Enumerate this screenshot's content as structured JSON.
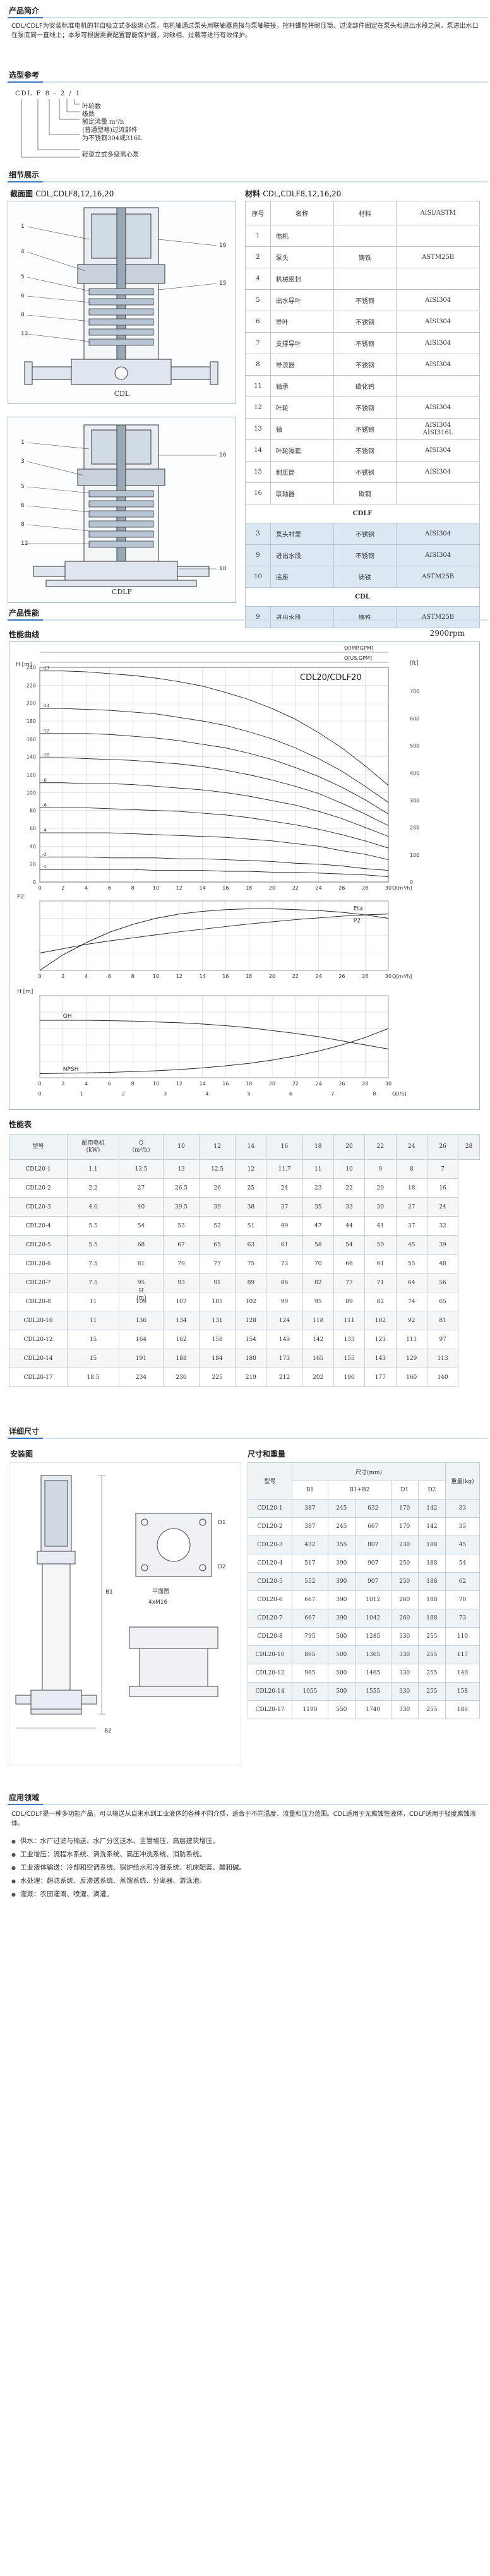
{
  "sections": {
    "intro": "产品简介",
    "model": "选型参考",
    "detail": "细节展示",
    "perf": "产品性能",
    "curve": "性能曲线",
    "perf_table": "性能表",
    "dims": "详细尺寸",
    "app": "应用领域"
  },
  "intro_text": "CDL/CDLF为安装标准电机的非自吸立式多级离心泵，电机轴通过泵头用联轴器直接与泵轴联接，控杆螺栓将耐压筒、过流部件固定在泵头和进出水段之间，泵进出水口在泵底同一直线上；本泵可根据需要配置智能保护器，对缺相、过载等进行有效保护。",
  "model_ref": {
    "code": "CDL  F  8 - 2 / 1",
    "lines": [
      "叶轮数",
      "级数",
      "额定流量 m³/h",
      "(普通型略)过流部件",
      "为不锈钢304或316L",
      "轻型立式多级离心泵"
    ]
  },
  "section_view": {
    "title": "截面图",
    "subtitle": "CDL,CDLF8,12,16,20",
    "labels": [
      "CDL",
      "CDLF"
    ]
  },
  "materials": {
    "title": "材料",
    "subtitle": "CDL,CDLF8,12,16,20",
    "headers": [
      "序号",
      "名称",
      "材料",
      "AISI/ASTM"
    ],
    "rows": [
      [
        "1",
        "电机",
        "",
        ""
      ],
      [
        "2",
        "泵头",
        "铸铁",
        "ASTM25B"
      ],
      [
        "4",
        "机械密封",
        "",
        ""
      ],
      [
        "5",
        "出水导叶",
        "不锈钢",
        "AISI304"
      ],
      [
        "6",
        "导叶",
        "不锈钢",
        "AISI304"
      ],
      [
        "7",
        "支撑导叶",
        "不锈钢",
        "AISI304"
      ],
      [
        "8",
        "导流器",
        "不锈钢",
        "AISI304"
      ],
      [
        "11",
        "轴承",
        "碳化钨",
        ""
      ],
      [
        "12",
        "叶轮",
        "不锈钢",
        "AISI304"
      ],
      [
        "13",
        "轴",
        "不锈钢",
        "AISI304\nAISI316L"
      ],
      [
        "14",
        "叶轮隔套",
        "不锈钢",
        "AISI304"
      ],
      [
        "15",
        "耐压筒",
        "不锈钢",
        "AISI304"
      ],
      [
        "16",
        "联轴器",
        "碳钢",
        ""
      ]
    ],
    "cdlf_label": "CDLF",
    "cdlf_rows": [
      [
        "3",
        "泵头衬里",
        "不锈钢",
        "AISI304"
      ],
      [
        "9",
        "进出水段",
        "不锈钢",
        "AISI304"
      ],
      [
        "10",
        "底座",
        "铸铁",
        "ASTM25B"
      ]
    ],
    "cdl_label": "CDL",
    "cdl_rows": [
      [
        "9",
        "进出水段",
        "铸铁",
        "ASTM25B"
      ]
    ]
  },
  "curve": {
    "rpm": "2900rpm",
    "model": "CDL20/CDLF20",
    "qaxis_imp": "Q[IMP.GPM]",
    "qaxis_us": "Q[US.GPM]",
    "h_unit_m": "H\n[m]",
    "h_unit_ft": "[ft]",
    "p_unit": "P2",
    "eta_label": "Eta",
    "p2_label": "P2",
    "npsh_label": "NPSH",
    "qh_label": "QH",
    "q_m3h": "Q[m³/h]",
    "q_ls": "Q[l/S]"
  },
  "chart_data": {
    "type": "line",
    "title": "CDL20/CDLF20",
    "xlabel": "Q[m³/h]",
    "ylabel": "H [m]",
    "xlim": [
      0,
      30
    ],
    "ylim": [
      0,
      240
    ],
    "x": [
      0,
      2,
      4,
      6,
      8,
      10,
      12,
      14,
      16,
      18,
      20,
      22,
      24,
      26,
      28,
      30
    ],
    "series": [
      {
        "name": "-17",
        "values": [
          236,
          236,
          235,
          233,
          231,
          228,
          224,
          219,
          212,
          204,
          194,
          182,
          167,
          150,
          130,
          108
        ]
      },
      {
        "name": "-14",
        "values": [
          194,
          194,
          193,
          192,
          190,
          188,
          184,
          180,
          175,
          168,
          160,
          150,
          138,
          124,
          107,
          89
        ]
      },
      {
        "name": "-12",
        "values": [
          166,
          166,
          166,
          165,
          163,
          161,
          158,
          154,
          150,
          144,
          137,
          128,
          118,
          106,
          92,
          76
        ]
      },
      {
        "name": "-10",
        "values": [
          139,
          139,
          138,
          137,
          136,
          134,
          132,
          129,
          125,
          120,
          114,
          107,
          99,
          88,
          76,
          63
        ]
      },
      {
        "name": "-8",
        "values": [
          111,
          111,
          110,
          110,
          109,
          107,
          105,
          103,
          100,
          96,
          91,
          86,
          79,
          71,
          61,
          51
        ]
      },
      {
        "name": "-6",
        "values": [
          83,
          83,
          83,
          82,
          81,
          80,
          79,
          77,
          75,
          72,
          68,
          64,
          59,
          53,
          46,
          38
        ]
      },
      {
        "name": "-4",
        "values": [
          55,
          55,
          55,
          55,
          54,
          53,
          52,
          51,
          50,
          48,
          46,
          43,
          40,
          35,
          31,
          25
        ]
      },
      {
        "name": "-2",
        "values": [
          28,
          28,
          28,
          27,
          27,
          27,
          26,
          26,
          25,
          24,
          23,
          21,
          20,
          18,
          15,
          13
        ]
      },
      {
        "name": "-1",
        "values": [
          14,
          14,
          14,
          14,
          14,
          13,
          13,
          13,
          12,
          12,
          11,
          11,
          10,
          9,
          8,
          6
        ]
      }
    ]
  },
  "perf_table": {
    "headers": [
      "型号",
      "配用电机\n(kW)",
      "Q\n(m³/h)",
      "10",
      "12",
      "14",
      "16",
      "18",
      "20",
      "22",
      "24",
      "26",
      "28"
    ],
    "h_label": "H\n(m)",
    "rows": [
      [
        "CDL20-1",
        "1.1",
        "13.5",
        "13",
        "12.5",
        "12",
        "11.7",
        "11",
        "10",
        "9",
        "8",
        "7"
      ],
      [
        "CDL20-2",
        "2.2",
        "27",
        "26.5",
        "26",
        "25",
        "24",
        "23",
        "22",
        "20",
        "18",
        "16"
      ],
      [
        "CDL20-3",
        "4.0",
        "40",
        "39.5",
        "39",
        "38",
        "37",
        "35",
        "33",
        "30",
        "27",
        "24"
      ],
      [
        "CDL20-4",
        "5.5",
        "54",
        "53",
        "52",
        "51",
        "49",
        "47",
        "44",
        "41",
        "37",
        "32"
      ],
      [
        "CDL20-5",
        "5.5",
        "68",
        "67",
        "65",
        "63",
        "61",
        "58",
        "54",
        "50",
        "45",
        "39"
      ],
      [
        "CDL20-6",
        "7.5",
        "81",
        "79",
        "77",
        "75",
        "73",
        "70",
        "66",
        "61",
        "55",
        "48"
      ],
      [
        "CDL20-7",
        "7.5",
        "95",
        "93",
        "91",
        "89",
        "86",
        "82",
        "77",
        "71",
        "64",
        "56"
      ],
      [
        "CDL20-8",
        "11",
        "109",
        "107",
        "105",
        "102",
        "99",
        "95",
        "89",
        "82",
        "74",
        "65"
      ],
      [
        "CDL20-10",
        "11",
        "136",
        "134",
        "131",
        "128",
        "124",
        "118",
        "111",
        "102",
        "92",
        "81"
      ],
      [
        "CDL20-12",
        "15",
        "164",
        "162",
        "158",
        "154",
        "149",
        "142",
        "133",
        "123",
        "111",
        "97"
      ],
      [
        "CDL20-14",
        "15",
        "191",
        "188",
        "184",
        "180",
        "173",
        "165",
        "155",
        "143",
        "129",
        "113"
      ],
      [
        "CDL20-17",
        "18.5",
        "234",
        "230",
        "225",
        "219",
        "212",
        "202",
        "190",
        "177",
        "160",
        "140"
      ]
    ]
  },
  "install": {
    "title": "安装图",
    "labels": [
      "B1",
      "B2",
      "D1",
      "D2",
      "平面图",
      "4xM16"
    ]
  },
  "dim_table": {
    "title": "尺寸和重量",
    "h_model": "型号",
    "h_size": "尺寸(mm)",
    "h_weight": "重量(kg)",
    "sub": [
      "B1",
      "B1+B2",
      "D1",
      "D2"
    ],
    "rows": [
      [
        "CDL20-1",
        "387",
        "245",
        "632",
        "170",
        "142",
        "33"
      ],
      [
        "CDL20-2",
        "387",
        "245",
        "667",
        "170",
        "142",
        "35"
      ],
      [
        "CDL20-3",
        "432",
        "355",
        "807",
        "230",
        "188",
        "45"
      ],
      [
        "CDL20-4",
        "517",
        "390",
        "907",
        "250",
        "188",
        "54"
      ],
      [
        "CDL20-5",
        "552",
        "390",
        "907",
        "250",
        "188",
        "62"
      ],
      [
        "CDL20-6",
        "667",
        "390",
        "1012",
        "260",
        "188",
        "70"
      ],
      [
        "CDL20-7",
        "667",
        "390",
        "1042",
        "260",
        "188",
        "73"
      ],
      [
        "CDL20-8",
        "795",
        "500",
        "1285",
        "330",
        "255",
        "110"
      ],
      [
        "CDL20-10",
        "865",
        "500",
        "1365",
        "330",
        "255",
        "117"
      ],
      [
        "CDL20-12",
        "965",
        "500",
        "1465",
        "330",
        "255",
        "140"
      ],
      [
        "CDL20-14",
        "1055",
        "500",
        "1555",
        "330",
        "255",
        "158"
      ],
      [
        "CDL20-17",
        "1190",
        "550",
        "1740",
        "330",
        "255",
        "186"
      ]
    ]
  },
  "app": {
    "intro": "CDL/CDLF是一种多功能产品，可以输送从自来水到工业液体的各种不同介质，适合于不同温度、流量和压力范围。CDL适用于无腐蚀性液体，CDLF适用于轻度腐蚀液体。",
    "items": [
      "供水：水厂过滤与输送、水厂分区送水、主管增压、高层建筑增压。",
      "工业增压：流程水系统、清洗系统、高压冲洗系统、消防系统。",
      "工业液体输送：冷却和空调系统、锅炉给水和冷凝系统、机床配套、酸和碱。",
      "水处理：超滤系统、反渗透系统、蒸馏系统、分离器、游泳池。",
      "灌溉：农田灌溉、喷灌、滴灌。"
    ]
  }
}
